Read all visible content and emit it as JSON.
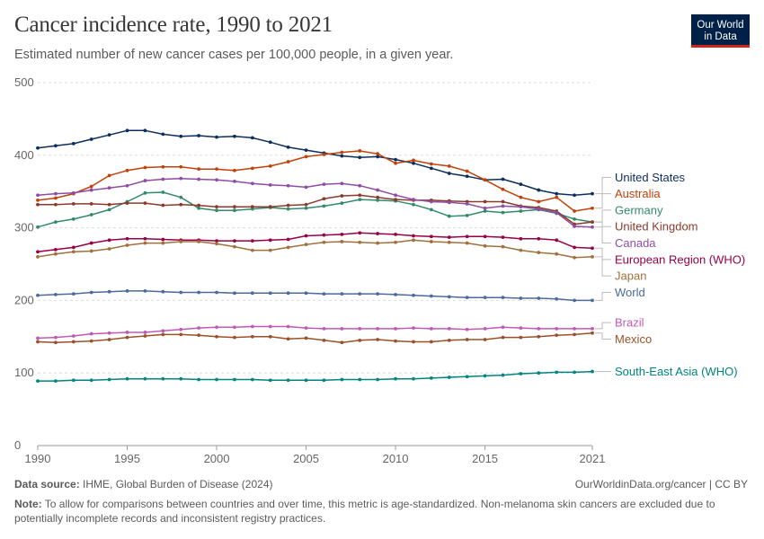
{
  "title": "Cancer incidence rate, 1990 to 2021",
  "subtitle": "Estimated number of new cancer cases per 100,000 people, in a given year.",
  "logo": {
    "line1": "Our World",
    "line2": "in Data"
  },
  "footer": {
    "source_label": "Data source:",
    "source_text": "IHME, Global Burden of Disease (2024)",
    "credit_link": "OurWorldinData.org/cancer",
    "credit_license": "| CC BY",
    "note_label": "Note:",
    "note_text": "To allow for comparisons between countries and over time, this metric is age-standardized. Non-melanoma skin cancers are excluded due to potentially incomplete records and inconsistent registry practices."
  },
  "chart_data": {
    "type": "line",
    "title": "Cancer incidence rate, 1990 to 2021",
    "xlabel": "",
    "ylabel": "",
    "xlim": [
      1990,
      2021
    ],
    "ylim": [
      0,
      500
    ],
    "x_ticks": [
      "1990",
      "1995",
      "2000",
      "2005",
      "2010",
      "2015",
      "2021"
    ],
    "y_ticks": [
      "0",
      "100",
      "200",
      "300",
      "400",
      "500"
    ],
    "grid": "horizontal dashed",
    "x": [
      1990,
      1991,
      1992,
      1993,
      1994,
      1995,
      1996,
      1997,
      1998,
      1999,
      2000,
      2001,
      2002,
      2003,
      2004,
      2005,
      2006,
      2007,
      2008,
      2009,
      2010,
      2011,
      2012,
      2013,
      2014,
      2015,
      2016,
      2017,
      2018,
      2019,
      2020,
      2021
    ],
    "series": [
      {
        "name": "United States",
        "color": "#0c2e5c",
        "values": [
          410,
          413,
          416,
          422,
          428,
          434,
          434,
          429,
          426,
          427,
          425,
          426,
          424,
          418,
          411,
          407,
          403,
          399,
          397,
          398,
          394,
          389,
          382,
          375,
          371,
          366,
          367,
          360,
          352,
          347,
          345,
          347
        ]
      },
      {
        "name": "Australia",
        "color": "#c0420b",
        "values": [
          338,
          341,
          347,
          357,
          372,
          379,
          383,
          384,
          384,
          381,
          381,
          379,
          382,
          385,
          391,
          398,
          401,
          404,
          406,
          402,
          389,
          393,
          388,
          385,
          378,
          366,
          353,
          342,
          336,
          342,
          323,
          327
        ]
      },
      {
        "name": "Germany",
        "color": "#33896e",
        "values": [
          301,
          308,
          312,
          318,
          325,
          336,
          348,
          349,
          342,
          327,
          324,
          324,
          326,
          328,
          326,
          327,
          330,
          334,
          339,
          338,
          337,
          332,
          325,
          316,
          317,
          323,
          321,
          323,
          325,
          320,
          312,
          308
        ]
      },
      {
        "name": "United Kingdom",
        "color": "#8b3b2b",
        "values": [
          332,
          332,
          333,
          333,
          332,
          334,
          334,
          331,
          332,
          331,
          329,
          329,
          329,
          329,
          331,
          332,
          340,
          344,
          345,
          342,
          339,
          338,
          338,
          337,
          336,
          336,
          336,
          330,
          328,
          323,
          305,
          308
        ]
      },
      {
        "name": "Canada",
        "color": "#8e4ca5",
        "values": [
          345,
          347,
          348,
          352,
          355,
          358,
          365,
          367,
          368,
          367,
          366,
          364,
          361,
          359,
          358,
          356,
          360,
          361,
          358,
          352,
          345,
          339,
          336,
          335,
          333,
          327,
          330,
          329,
          326,
          321,
          302,
          301
        ]
      },
      {
        "name": "European Region (WHO)",
        "color": "#970046",
        "values": [
          267,
          270,
          273,
          279,
          283,
          285,
          285,
          284,
          283,
          283,
          282,
          282,
          282,
          283,
          284,
          289,
          290,
          291,
          293,
          292,
          291,
          289,
          288,
          287,
          288,
          288,
          287,
          285,
          285,
          283,
          273,
          272
        ]
      },
      {
        "name": "Japan",
        "color": "#a0703d",
        "values": [
          260,
          264,
          267,
          268,
          271,
          276,
          279,
          279,
          281,
          281,
          278,
          274,
          269,
          269,
          273,
          277,
          280,
          281,
          280,
          279,
          280,
          283,
          281,
          280,
          279,
          275,
          274,
          269,
          266,
          264,
          259,
          260
        ]
      },
      {
        "name": "World",
        "color": "#4c6a9c",
        "values": [
          207,
          208,
          209,
          211,
          212,
          213,
          213,
          212,
          211,
          211,
          211,
          210,
          210,
          210,
          210,
          210,
          209,
          209,
          209,
          209,
          208,
          207,
          206,
          205,
          204,
          204,
          204,
          203,
          203,
          202,
          200,
          200
        ]
      },
      {
        "name": "Brazil",
        "color": "#c15ab5",
        "values": [
          148,
          149,
          151,
          154,
          155,
          156,
          156,
          158,
          160,
          162,
          163,
          163,
          164,
          164,
          164,
          162,
          161,
          161,
          161,
          161,
          161,
          162,
          161,
          161,
          160,
          161,
          163,
          162,
          161,
          161,
          161,
          161
        ]
      },
      {
        "name": "Mexico",
        "color": "#9a5129",
        "values": [
          143,
          142,
          143,
          144,
          146,
          149,
          151,
          153,
          153,
          152,
          150,
          149,
          150,
          150,
          147,
          148,
          145,
          142,
          145,
          146,
          144,
          143,
          143,
          145,
          146,
          146,
          149,
          149,
          150,
          152,
          153,
          155
        ]
      },
      {
        "name": "South-East Asia (WHO)",
        "color": "#00847e",
        "values": [
          89,
          89,
          90,
          90,
          91,
          92,
          92,
          92,
          92,
          91,
          91,
          91,
          91,
          90,
          90,
          90,
          90,
          91,
          91,
          91,
          92,
          92,
          93,
          94,
          95,
          96,
          97,
          99,
          100,
          101,
          101,
          102
        ]
      }
    ]
  }
}
